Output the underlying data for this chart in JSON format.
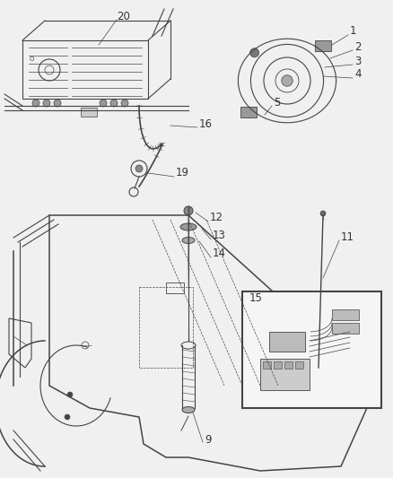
{
  "bg_color": "#f0f0f0",
  "line_color": "#444444",
  "label_color": "#333333",
  "font_size": 8.5,
  "fig_w": 4.38,
  "fig_h": 5.33,
  "dpi": 100
}
